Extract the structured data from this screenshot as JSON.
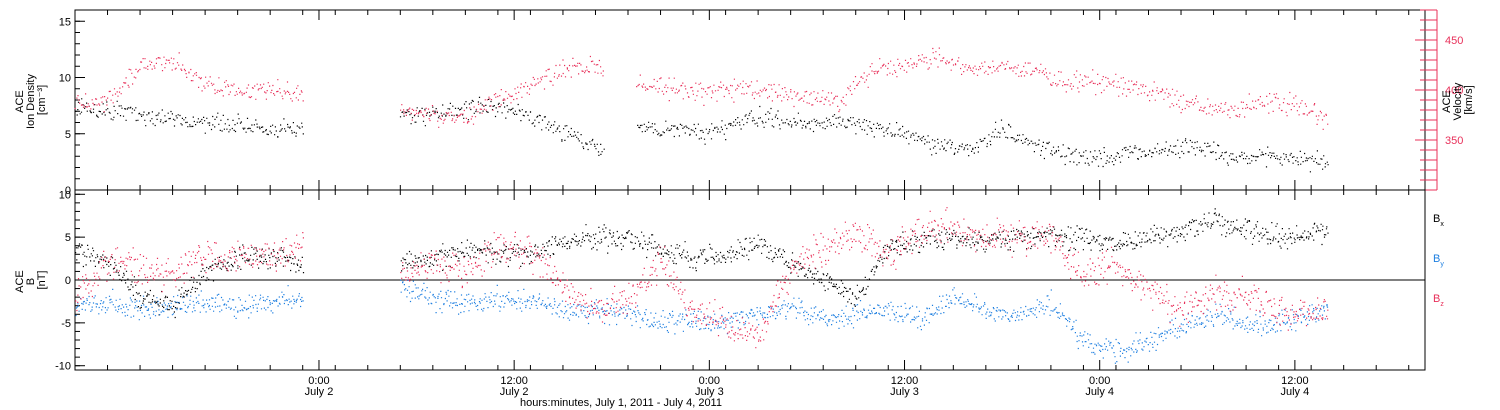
{
  "xaxis": {
    "caption": "hours:minutes, July  1, 2011 - July  4, 2011",
    "range": [
      "2011-07-01T09:00",
      "2011-07-04T20:00"
    ],
    "ticks": [
      {
        "time": "2011-07-02T00:00",
        "line1": "0:00",
        "line2": "July 2"
      },
      {
        "time": "2011-07-02T12:00",
        "line1": "12:00",
        "line2": "July 2"
      },
      {
        "time": "2011-07-03T00:00",
        "line1": "0:00",
        "line2": "July 3"
      },
      {
        "time": "2011-07-03T12:00",
        "line1": "12:00",
        "line2": "July 3"
      },
      {
        "time": "2011-07-04T00:00",
        "line1": "0:00",
        "line2": "July 4"
      },
      {
        "time": "2011-07-04T12:00",
        "line1": "12:00",
        "line2": "July 4"
      }
    ],
    "minor_tick_hours": 2
  },
  "colors": {
    "density": "#000000",
    "velocity": "#e8305a",
    "bx": "#000000",
    "by": "#1e7fe0",
    "bz": "#e8305a",
    "axis": "#000000"
  },
  "chart_data": [
    {
      "type": "scatter",
      "panel": "plasma",
      "left_axis": {
        "label_lines": [
          "ACE",
          "Ion Density",
          "[cm⁻³]"
        ],
        "ylim": [
          0,
          16
        ],
        "ticks": [
          0,
          5,
          10,
          15
        ]
      },
      "right_axis": {
        "label_lines": [
          "ACE",
          "Velocity",
          "[km/s]"
        ],
        "ylim": [
          300,
          480
        ],
        "ticks": [
          350,
          400,
          450
        ],
        "color": "#e8305a"
      },
      "data_gaps": [
        [
          "2011-07-01T23:00",
          "2011-07-02T05:00"
        ],
        [
          "2011-07-02T17:30",
          "2011-07-02T19:30"
        ]
      ],
      "series": [
        {
          "axis": "left",
          "color": "#000000",
          "points": [
            [
              "2011-07-01T09:00",
              7.5
            ],
            [
              "2011-07-01T12:00",
              7.0
            ],
            [
              "2011-07-01T15:00",
              6.5
            ],
            [
              "2011-07-01T18:00",
              6.0
            ],
            [
              "2011-07-01T21:00",
              5.5
            ],
            [
              "2011-07-01T23:00",
              5.5
            ],
            [
              "2011-07-02T05:00",
              6.5
            ],
            [
              "2011-07-02T08:00",
              7.0
            ],
            [
              "2011-07-02T10:00",
              7.5
            ],
            [
              "2011-07-02T12:00",
              7.0
            ],
            [
              "2011-07-02T14:00",
              6.0
            ],
            [
              "2011-07-02T16:00",
              4.5
            ],
            [
              "2011-07-02T17:30",
              3.5
            ],
            [
              "2011-07-02T19:30",
              5.5
            ],
            [
              "2011-07-02T22:00",
              5.5
            ],
            [
              "2011-07-03T00:00",
              5.0
            ],
            [
              "2011-07-03T03:00",
              6.5
            ],
            [
              "2011-07-03T06:00",
              6.0
            ],
            [
              "2011-07-03T09:00",
              6.0
            ],
            [
              "2011-07-03T12:00",
              5.0
            ],
            [
              "2011-07-03T14:00",
              4.0
            ],
            [
              "2011-07-03T16:00",
              3.5
            ],
            [
              "2011-07-03T18:00",
              5.5
            ],
            [
              "2011-07-03T20:00",
              4.0
            ],
            [
              "2011-07-03T22:00",
              3.0
            ],
            [
              "2011-07-04T00:00",
              3.0
            ],
            [
              "2011-07-04T03:00",
              3.5
            ],
            [
              "2011-07-04T06:00",
              4.0
            ],
            [
              "2011-07-04T08:00",
              3.0
            ],
            [
              "2011-07-04T10:00",
              3.0
            ],
            [
              "2011-07-04T12:00",
              3.0
            ],
            [
              "2011-07-04T14:00",
              2.5
            ]
          ]
        },
        {
          "axis": "right",
          "color": "#e8305a",
          "points": [
            [
              "2011-07-01T09:00",
              385
            ],
            [
              "2011-07-01T11:00",
              390
            ],
            [
              "2011-07-01T13:00",
              425
            ],
            [
              "2011-07-01T15:00",
              428
            ],
            [
              "2011-07-01T17:00",
              405
            ],
            [
              "2011-07-01T19:00",
              400
            ],
            [
              "2011-07-01T21:00",
              400
            ],
            [
              "2011-07-01T23:00",
              395
            ],
            [
              "2011-07-02T05:00",
              380
            ],
            [
              "2011-07-02T07:00",
              375
            ],
            [
              "2011-07-02T09:00",
              372
            ],
            [
              "2011-07-02T11:00",
              390
            ],
            [
              "2011-07-02T13:00",
              405
            ],
            [
              "2011-07-02T15:00",
              420
            ],
            [
              "2011-07-02T17:00",
              425
            ],
            [
              "2011-07-02T19:30",
              408
            ],
            [
              "2011-07-02T22:00",
              400
            ],
            [
              "2011-07-03T00:00",
              400
            ],
            [
              "2011-07-03T02:00",
              405
            ],
            [
              "2011-07-03T04:00",
              398
            ],
            [
              "2011-07-03T06:00",
              392
            ],
            [
              "2011-07-03T08:00",
              390
            ],
            [
              "2011-07-03T10:00",
              420
            ],
            [
              "2011-07-03T12:00",
              425
            ],
            [
              "2011-07-03T14:00",
              435
            ],
            [
              "2011-07-03T16:00",
              420
            ],
            [
              "2011-07-03T18:00",
              425
            ],
            [
              "2011-07-03T20:00",
              418
            ],
            [
              "2011-07-03T22:00",
              410
            ],
            [
              "2011-07-04T00:00",
              408
            ],
            [
              "2011-07-04T02:00",
              405
            ],
            [
              "2011-07-04T04:00",
              395
            ],
            [
              "2011-07-04T06:00",
              385
            ],
            [
              "2011-07-04T08:00",
              378
            ],
            [
              "2011-07-04T10:00",
              390
            ],
            [
              "2011-07-04T12:00",
              385
            ],
            [
              "2011-07-04T14:00",
              370
            ]
          ]
        }
      ]
    },
    {
      "type": "scatter",
      "panel": "magnetic_field",
      "left_axis": {
        "label_lines": [
          "ACE",
          "B",
          "[nT]"
        ],
        "ylim": [
          -10.5,
          10.5
        ],
        "ticks": [
          -10,
          -5,
          0,
          5,
          10
        ]
      },
      "zero_line": true,
      "data_gaps": [
        [
          "2011-07-01T23:00",
          "2011-07-02T05:00"
        ]
      ],
      "series": [
        {
          "name": "Bx",
          "label_main": "B",
          "label_sub": "x",
          "color": "#000000",
          "points": [
            [
              "2011-07-01T09:00",
              3.5
            ],
            [
              "2011-07-01T11:00",
              2.0
            ],
            [
              "2011-07-01T13:00",
              -2.0
            ],
            [
              "2011-07-01T15:00",
              -3.0
            ],
            [
              "2011-07-01T17:00",
              1.0
            ],
            [
              "2011-07-01T19:00",
              2.5
            ],
            [
              "2011-07-01T21:00",
              3.0
            ],
            [
              "2011-07-01T23:00",
              1.5
            ],
            [
              "2011-07-02T05:00",
              2.0
            ],
            [
              "2011-07-02T07:00",
              2.5
            ],
            [
              "2011-07-02T09:00",
              3.5
            ],
            [
              "2011-07-02T11:00",
              3.5
            ],
            [
              "2011-07-02T13:00",
              3.0
            ],
            [
              "2011-07-02T15:00",
              4.5
            ],
            [
              "2011-07-02T17:00",
              5.0
            ],
            [
              "2011-07-02T19:00",
              5.0
            ],
            [
              "2011-07-02T21:00",
              3.5
            ],
            [
              "2011-07-02T23:00",
              2.5
            ],
            [
              "2011-07-03T01:00",
              3.0
            ],
            [
              "2011-07-03T03:00",
              4.5
            ],
            [
              "2011-07-03T05:00",
              2.0
            ],
            [
              "2011-07-03T07:00",
              0.0
            ],
            [
              "2011-07-03T09:00",
              -2.0
            ],
            [
              "2011-07-03T11:00",
              4.0
            ],
            [
              "2011-07-03T13:00",
              4.5
            ],
            [
              "2011-07-03T15:00",
              5.0
            ],
            [
              "2011-07-03T17:00",
              4.5
            ],
            [
              "2011-07-03T19:00",
              5.0
            ],
            [
              "2011-07-03T21:00",
              5.5
            ],
            [
              "2011-07-03T23:00",
              5.0
            ],
            [
              "2011-07-04T01:00",
              4.0
            ],
            [
              "2011-07-04T03:00",
              5.0
            ],
            [
              "2011-07-04T05:00",
              6.0
            ],
            [
              "2011-07-04T07:00",
              7.0
            ],
            [
              "2011-07-04T09:00",
              6.0
            ],
            [
              "2011-07-04T11:00",
              5.0
            ],
            [
              "2011-07-04T13:00",
              5.5
            ],
            [
              "2011-07-04T14:00",
              6.0
            ]
          ]
        },
        {
          "name": "By",
          "label_main": "B",
          "label_sub": "y",
          "color": "#1e7fe0",
          "points": [
            [
              "2011-07-01T09:00",
              -3.0
            ],
            [
              "2011-07-01T11:00",
              -2.5
            ],
            [
              "2011-07-01T13:00",
              -3.5
            ],
            [
              "2011-07-01T15:00",
              -3.0
            ],
            [
              "2011-07-01T17:00",
              -2.5
            ],
            [
              "2011-07-01T19:00",
              -3.0
            ],
            [
              "2011-07-01T21:00",
              -2.5
            ],
            [
              "2011-07-01T23:00",
              -2.0
            ],
            [
              "2011-07-02T05:00",
              -1.0
            ],
            [
              "2011-07-02T07:00",
              -2.0
            ],
            [
              "2011-07-02T09:00",
              -2.5
            ],
            [
              "2011-07-02T11:00",
              -2.0
            ],
            [
              "2011-07-02T13:00",
              -2.5
            ],
            [
              "2011-07-02T15:00",
              -3.5
            ],
            [
              "2011-07-02T17:00",
              -3.5
            ],
            [
              "2011-07-02T19:00",
              -4.0
            ],
            [
              "2011-07-02T21:00",
              -5.0
            ],
            [
              "2011-07-02T23:00",
              -4.5
            ],
            [
              "2011-07-03T01:00",
              -5.0
            ],
            [
              "2011-07-03T03:00",
              -4.0
            ],
            [
              "2011-07-03T05:00",
              -3.0
            ],
            [
              "2011-07-03T07:00",
              -4.5
            ],
            [
              "2011-07-03T09:00",
              -4.0
            ],
            [
              "2011-07-03T11:00",
              -3.0
            ],
            [
              "2011-07-03T13:00",
              -4.5
            ],
            [
              "2011-07-03T15:00",
              -2.0
            ],
            [
              "2011-07-03T17:00",
              -3.5
            ],
            [
              "2011-07-03T19:00",
              -4.0
            ],
            [
              "2011-07-03T21:00",
              -2.5
            ],
            [
              "2011-07-03T23:00",
              -7.0
            ],
            [
              "2011-07-04T01:00",
              -8.5
            ],
            [
              "2011-07-04T03:00",
              -7.0
            ],
            [
              "2011-07-04T05:00",
              -5.5
            ],
            [
              "2011-07-04T07:00",
              -4.0
            ],
            [
              "2011-07-04T09:00",
              -5.0
            ],
            [
              "2011-07-04T11:00",
              -5.0
            ],
            [
              "2011-07-04T13:00",
              -4.0
            ],
            [
              "2011-07-04T14:00",
              -3.5
            ]
          ]
        },
        {
          "name": "Bz",
          "label_main": "B",
          "label_sub": "z",
          "color": "#e8305a",
          "points": [
            [
              "2011-07-01T09:00",
              -2.0
            ],
            [
              "2011-07-01T11:00",
              2.0
            ],
            [
              "2011-07-01T13:00",
              1.5
            ],
            [
              "2011-07-01T15:00",
              0.5
            ],
            [
              "2011-07-01T17:00",
              3.0
            ],
            [
              "2011-07-01T19:00",
              2.5
            ],
            [
              "2011-07-01T21:00",
              3.0
            ],
            [
              "2011-07-01T23:00",
              4.0
            ],
            [
              "2011-07-02T05:00",
              1.0
            ],
            [
              "2011-07-02T07:00",
              2.0
            ],
            [
              "2011-07-02T09:00",
              1.0
            ],
            [
              "2011-07-02T11:00",
              4.0
            ],
            [
              "2011-07-02T13:00",
              3.5
            ],
            [
              "2011-07-02T15:00",
              -1.0
            ],
            [
              "2011-07-02T17:00",
              -3.5
            ],
            [
              "2011-07-02T19:00",
              -2.0
            ],
            [
              "2011-07-02T21:00",
              2.0
            ],
            [
              "2011-07-02T23:00",
              -3.5
            ],
            [
              "2011-07-03T01:00",
              -5.0
            ],
            [
              "2011-07-03T03:00",
              -6.5
            ],
            [
              "2011-07-03T05:00",
              1.5
            ],
            [
              "2011-07-03T07:00",
              4.0
            ],
            [
              "2011-07-03T09:00",
              5.5
            ],
            [
              "2011-07-03T11:00",
              3.0
            ],
            [
              "2011-07-03T13:00",
              5.5
            ],
            [
              "2011-07-03T15:00",
              6.0
            ],
            [
              "2011-07-03T17:00",
              4.5
            ],
            [
              "2011-07-03T19:00",
              5.5
            ],
            [
              "2011-07-03T21:00",
              5.0
            ],
            [
              "2011-07-03T23:00",
              0.5
            ],
            [
              "2011-07-04T01:00",
              2.0
            ],
            [
              "2011-07-04T03:00",
              -1.0
            ],
            [
              "2011-07-04T05:00",
              -3.5
            ],
            [
              "2011-07-04T07:00",
              -1.5
            ],
            [
              "2011-07-04T09:00",
              -2.0
            ],
            [
              "2011-07-04T11:00",
              -3.5
            ],
            [
              "2011-07-04T13:00",
              -4.0
            ],
            [
              "2011-07-04T14:00",
              -3.0
            ]
          ]
        }
      ]
    }
  ]
}
